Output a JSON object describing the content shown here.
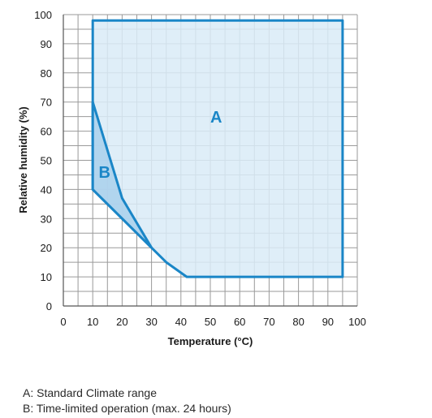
{
  "chart_data": {
    "type": "area",
    "xlabel": "Temperature (°C)",
    "ylabel": "Relative humidity (%)",
    "xlim": [
      0,
      100
    ],
    "ylim": [
      0,
      100
    ],
    "x_ticks": [
      0,
      10,
      20,
      30,
      40,
      50,
      60,
      70,
      80,
      90,
      100
    ],
    "y_ticks": [
      0,
      10,
      20,
      30,
      40,
      50,
      60,
      70,
      80,
      90,
      100
    ],
    "grid": true,
    "grid_minor_step": 5,
    "colors": {
      "region_stroke": "#1a86c7",
      "region_A_fill": "#d9ebf7",
      "region_B_fill": "#a9d0ec",
      "grid": "#9a9a9a",
      "label": "#1a86c7"
    },
    "regions": [
      {
        "name": "A",
        "label": "A",
        "label_at": [
          52,
          63
        ],
        "points": [
          [
            10,
            98
          ],
          [
            95,
            98
          ],
          [
            95,
            10
          ],
          [
            42,
            10
          ],
          [
            35,
            15
          ],
          [
            30,
            20
          ],
          [
            10,
            40
          ]
        ]
      },
      {
        "name": "B",
        "label": "B",
        "label_at": [
          14,
          44
        ],
        "points": [
          [
            10,
            70
          ],
          [
            20,
            37
          ],
          [
            30,
            20
          ],
          [
            10,
            40
          ]
        ]
      }
    ]
  },
  "legend": {
    "a": "A: Standard Climate range",
    "b": "B: Time-limited operation (max. 24 hours)"
  }
}
